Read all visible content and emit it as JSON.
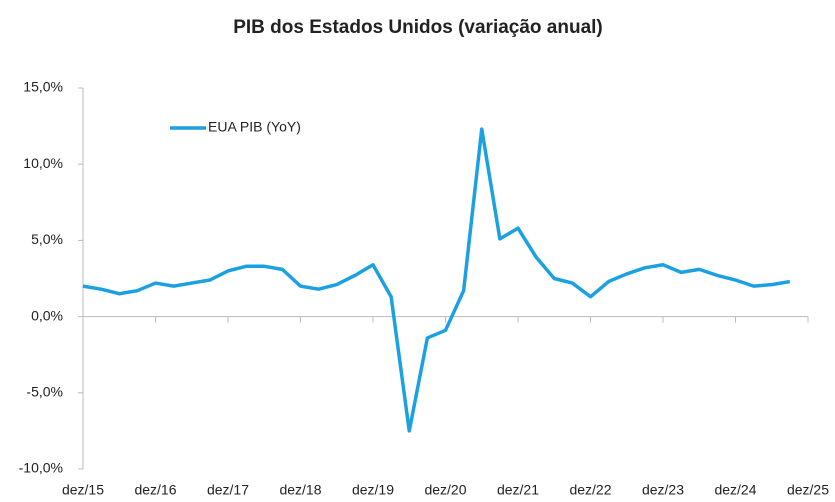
{
  "chart_data": {
    "type": "line",
    "title": "PIB dos Estados Unidos (variação anual)",
    "categories": [
      "dez/15",
      null,
      null,
      null,
      "dez/16",
      null,
      null,
      null,
      "dez/17",
      null,
      null,
      null,
      "dez/18",
      null,
      null,
      null,
      "dez/19",
      null,
      null,
      null,
      "dez/20",
      null,
      null,
      null,
      "dez/21",
      null,
      null,
      null,
      "dez/22",
      null,
      null,
      null,
      "dez/23",
      null,
      null,
      null,
      "dez/24",
      null,
      null,
      null,
      "dez/25"
    ],
    "series": [
      {
        "name": "EUA PIB (YoY)",
        "color": "#1ba1e2",
        "values": [
          2.0,
          1.8,
          1.5,
          1.7,
          2.2,
          2.0,
          2.2,
          2.4,
          3.0,
          3.3,
          3.3,
          3.1,
          2.0,
          1.8,
          2.1,
          2.7,
          3.4,
          1.3,
          -7.5,
          -1.4,
          -0.9,
          1.7,
          12.3,
          5.1,
          5.8,
          3.9,
          2.5,
          2.2,
          1.3,
          2.3,
          2.8,
          3.2,
          3.4,
          2.9,
          3.1,
          2.7,
          2.4,
          2.0,
          2.1,
          2.3,
          null
        ]
      }
    ],
    "ylim": [
      -10,
      15
    ],
    "yticks": [
      {
        "value": -10,
        "label": "-10,0%"
      },
      {
        "value": -5,
        "label": "-5,0%"
      },
      {
        "value": 0,
        "label": "0,0%"
      },
      {
        "value": 5,
        "label": "5,0%"
      },
      {
        "value": 10,
        "label": "10,0%"
      },
      {
        "value": 15,
        "label": "15,0%"
      }
    ],
    "legend": "upper left"
  }
}
